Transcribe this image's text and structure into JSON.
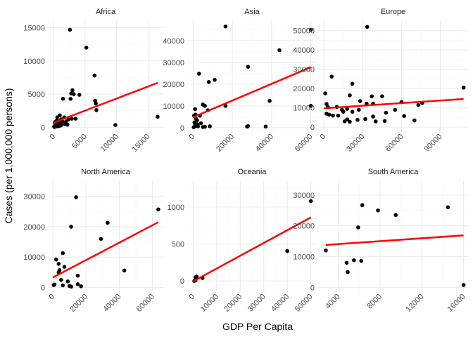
{
  "chart_data": {
    "type": "scatter",
    "facet_by": "continent",
    "xlabel": "GDP Per Capita",
    "ylabel": "Cases (per 1,000,000 persons)",
    "grid": true,
    "trendline": "linear fit",
    "colors": {
      "points": "#000000",
      "fit": "#ff0000",
      "grid": "#ebebeb"
    },
    "panels": [
      {
        "title": "Africa",
        "xlim": [
          -900,
          17400
        ],
        "ylim": [
          -700,
          16000
        ],
        "xticks": [
          0,
          5000,
          10000,
          15000
        ],
        "yticks": [
          0,
          5000,
          10000,
          15000
        ],
        "fit": {
          "x": [
            0,
            16500
          ],
          "y": [
            700,
            6700
          ]
        },
        "points": [
          [
            2600,
            14700
          ],
          [
            5200,
            12000
          ],
          [
            6500,
            7800
          ],
          [
            6600,
            4000
          ],
          [
            6700,
            3600
          ],
          [
            6800,
            2600
          ],
          [
            3000,
            5600
          ],
          [
            2800,
            5100
          ],
          [
            3200,
            5000
          ],
          [
            4100,
            4900
          ],
          [
            2700,
            4300
          ],
          [
            1500,
            4300
          ],
          [
            16500,
            1600
          ],
          [
            9800,
            350
          ],
          [
            1000,
            1800
          ],
          [
            600,
            1500
          ],
          [
            500,
            1000
          ],
          [
            200,
            700
          ],
          [
            400,
            500
          ],
          [
            800,
            900
          ],
          [
            1200,
            1200
          ],
          [
            1700,
            1500
          ],
          [
            2000,
            900
          ],
          [
            2400,
            1200
          ],
          [
            2900,
            1300
          ],
          [
            300,
            400
          ],
          [
            100,
            100
          ],
          [
            700,
            300
          ],
          [
            900,
            200
          ],
          [
            1100,
            600
          ],
          [
            1400,
            900
          ],
          [
            1800,
            500
          ],
          [
            2200,
            400
          ],
          [
            3500,
            1300
          ],
          [
            150,
            50
          ],
          [
            600,
            150
          ],
          [
            1200,
            300
          ],
          [
            250,
            800
          ]
        ]
      },
      {
        "title": "Asia",
        "xlim": [
          -3000,
          63000
        ],
        "ylim": [
          -2000,
          49000
        ],
        "xticks": [
          0,
          20000,
          40000,
          60000
        ],
        "yticks": [
          0,
          10000,
          20000,
          30000,
          40000
        ],
        "fit": {
          "x": [
            0,
            60000
          ],
          "y": [
            4800,
            27800
          ]
        },
        "points": [
          [
            16500,
            46500
          ],
          [
            60000,
            45000
          ],
          [
            44000,
            35600
          ],
          [
            28000,
            28000
          ],
          [
            3000,
            24800
          ],
          [
            8000,
            21000
          ],
          [
            11000,
            22000
          ],
          [
            16500,
            10000
          ],
          [
            60000,
            10000
          ],
          [
            39000,
            12300
          ],
          [
            5000,
            10600
          ],
          [
            6000,
            10000
          ],
          [
            1000,
            8500
          ],
          [
            500,
            5500
          ],
          [
            1200,
            6000
          ],
          [
            1500,
            4000
          ],
          [
            2000,
            3300
          ],
          [
            3500,
            5500
          ],
          [
            7500,
            8000
          ],
          [
            27500,
            500
          ],
          [
            28000,
            700
          ],
          [
            37000,
            500
          ],
          [
            5000,
            300
          ],
          [
            6000,
            400
          ],
          [
            8500,
            600
          ],
          [
            2500,
            600
          ],
          [
            300,
            200
          ],
          [
            1000,
            1000
          ],
          [
            2200,
            1500
          ],
          [
            700,
            2400
          ],
          [
            1500,
            800
          ],
          [
            4000,
            2000
          ]
        ]
      },
      {
        "title": "Europe",
        "xlim": [
          -5000,
          112000
        ],
        "ylim": [
          -2500,
          55000
        ],
        "xticks": [
          0,
          30000,
          60000,
          90000
        ],
        "yticks": [
          0,
          10000,
          20000,
          30000,
          40000,
          50000
        ],
        "fit": {
          "x": [
            0,
            108000
          ],
          "y": [
            9800,
            14600
          ]
        },
        "points": [
          [
            33500,
            52000
          ],
          [
            6000,
            26200
          ],
          [
            22000,
            22500
          ],
          [
            108000,
            20500
          ],
          [
            1000,
            17500
          ],
          [
            20000,
            16500
          ],
          [
            37000,
            16000
          ],
          [
            45000,
            16000
          ],
          [
            28000,
            13500
          ],
          [
            33000,
            12200
          ],
          [
            38000,
            12200
          ],
          [
            60000,
            13000
          ],
          [
            76000,
            12500
          ],
          [
            73000,
            11500
          ],
          [
            2000,
            12000
          ],
          [
            3000,
            10500
          ],
          [
            10000,
            10500
          ],
          [
            14000,
            9000
          ],
          [
            18000,
            9500
          ],
          [
            22000,
            8000
          ],
          [
            27000,
            9000
          ],
          [
            38000,
            5500
          ],
          [
            48000,
            7500
          ],
          [
            55000,
            9000
          ],
          [
            62000,
            5800
          ],
          [
            70000,
            3500
          ],
          [
            2000,
            7000
          ],
          [
            4000,
            6500
          ],
          [
            7000,
            6000
          ],
          [
            11000,
            6000
          ],
          [
            15000,
            8000
          ],
          [
            18000,
            4000
          ],
          [
            26000,
            3800
          ],
          [
            32000,
            4200
          ],
          [
            40000,
            3000
          ],
          [
            47000,
            3200
          ],
          [
            16000,
            3000
          ],
          [
            20000,
            2800
          ]
        ]
      },
      {
        "title": "North America",
        "xlim": [
          -3000,
          66500
        ],
        "ylim": [
          -1500,
          35000
        ],
        "xticks": [
          0,
          20000,
          40000,
          60000
        ],
        "yticks": [
          0,
          10000,
          20000,
          30000
        ],
        "fit": {
          "x": [
            0,
            63500
          ],
          "y": [
            3300,
            21500
          ]
        },
        "points": [
          [
            14000,
            29700
          ],
          [
            63500,
            25700
          ],
          [
            33000,
            21300
          ],
          [
            11000,
            20000
          ],
          [
            29000,
            16000
          ],
          [
            2000,
            9200
          ],
          [
            3500,
            7800
          ],
          [
            6000,
            11300
          ],
          [
            7000,
            6800
          ],
          [
            4000,
            5700
          ],
          [
            3500,
            5000
          ],
          [
            43000,
            5600
          ],
          [
            15000,
            3900
          ],
          [
            5000,
            2500
          ],
          [
            9000,
            2000
          ],
          [
            15000,
            1100
          ],
          [
            17000,
            400
          ],
          [
            11000,
            300
          ],
          [
            6000,
            700
          ],
          [
            10000,
            500
          ],
          [
            500,
            800
          ],
          [
            1000,
            1000
          ]
        ]
      },
      {
        "title": "Oceania",
        "xlim": [
          -2500,
          52500
        ],
        "ylim": [
          -150,
          1350
        ],
        "xticks": [
          0,
          10000,
          20000,
          30000,
          40000,
          50000
        ],
        "yticks": [
          0,
          500,
          1000
        ],
        "fit": {
          "x": [
            0,
            50000
          ],
          "y": [
            -5,
            860
          ]
        },
        "points": [
          [
            50000,
            1080
          ],
          [
            40000,
            405
          ],
          [
            1000,
            50
          ],
          [
            4000,
            40
          ],
          [
            1000,
            10
          ],
          [
            500,
            0
          ],
          [
            1500,
            60
          ]
        ]
      },
      {
        "title": "South America",
        "xlim": [
          2000,
          16500
        ],
        "ylim": [
          -1500,
          34500
        ],
        "xticks": [
          4000,
          8000,
          12000,
          16000
        ],
        "yticks": [
          0,
          10000,
          20000,
          30000
        ],
        "fit": {
          "x": [
            2800,
            16000
          ],
          "y": [
            13800,
            16900
          ]
        },
        "points": [
          [
            2800,
            12000
          ],
          [
            6300,
            26700
          ],
          [
            7800,
            25000
          ],
          [
            9500,
            23500
          ],
          [
            14500,
            26000
          ],
          [
            5900,
            19500
          ],
          [
            4800,
            8000
          ],
          [
            5500,
            8800
          ],
          [
            6200,
            8600
          ],
          [
            4900,
            5000
          ],
          [
            16000,
            800
          ]
        ]
      }
    ]
  }
}
